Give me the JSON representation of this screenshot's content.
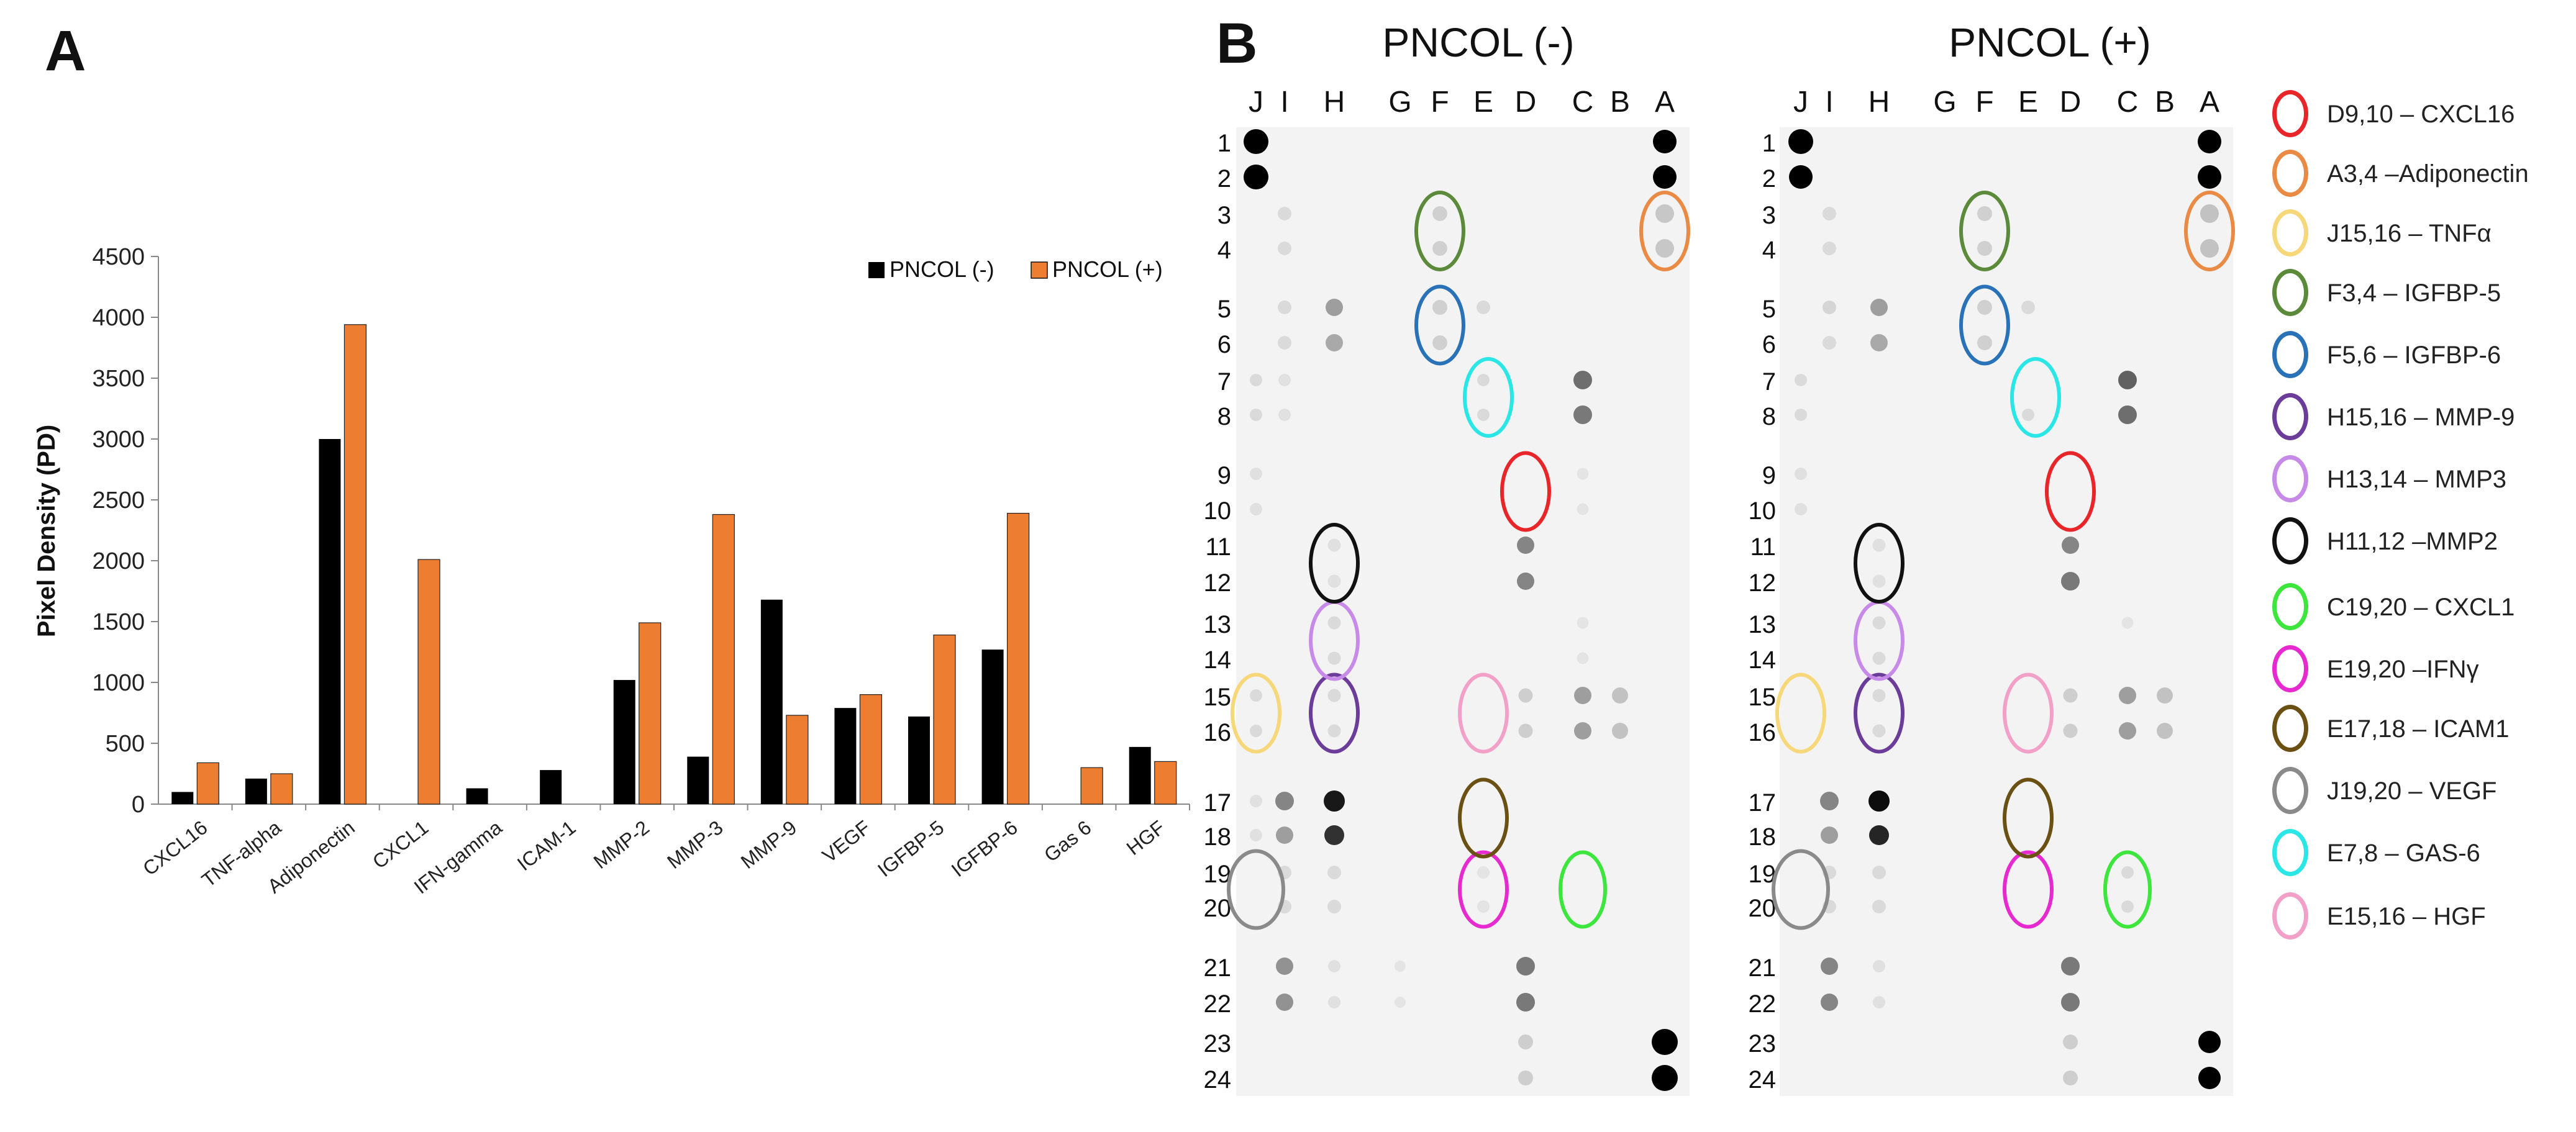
{
  "panel_a": {
    "letter": "A",
    "chart_data": {
      "type": "bar",
      "title": "",
      "xlabel": "",
      "ylabel": "Pixel Density (PD)",
      "ylim": [
        0,
        4500
      ],
      "yticks": [
        0,
        500,
        1000,
        1500,
        2000,
        2500,
        3000,
        3500,
        4000,
        4500
      ],
      "categories": [
        "CXCL16",
        "TNF-alpha",
        "Adiponectin",
        "CXCL1",
        "IFN-gamma",
        "ICAM-1",
        "MMP-2",
        "MMP-3",
        "MMP-9",
        "VEGF",
        "IGFBP-5",
        "IGFBP-6",
        "Gas 6",
        "HGF"
      ],
      "series": [
        {
          "name": "PNCOL (-)",
          "color": "#000000",
          "values": [
            100,
            210,
            3000,
            0,
            130,
            280,
            1020,
            390,
            1680,
            790,
            720,
            1270,
            0,
            470
          ]
        },
        {
          "name": "PNCOL (+)",
          "color": "#ed7d31",
          "values": [
            340,
            250,
            3940,
            2010,
            0,
            0,
            1490,
            2380,
            730,
            900,
            1390,
            2390,
            300,
            350
          ]
        }
      ],
      "legend_position": "top-right",
      "grid": false
    }
  },
  "panel_b": {
    "letter": "B",
    "column_letters": [
      "J",
      "I",
      "H",
      "G",
      "F",
      "E",
      "D",
      "C",
      "B",
      "A"
    ],
    "row_numbers": [
      "1",
      "2",
      "3",
      "4",
      "5",
      "6",
      "7",
      "8",
      "9",
      "10",
      "11",
      "12",
      "13",
      "14",
      "15",
      "16",
      "17",
      "18",
      "19",
      "20",
      "21",
      "22",
      "23",
      "24"
    ],
    "blots": [
      {
        "title": "PNCOL (-)"
      },
      {
        "title": "PNCOL (+)"
      }
    ],
    "legend": [
      {
        "label": "D9,10 – CXCL16",
        "color": "#e8262a"
      },
      {
        "label": "A3,4 –Adiponectin",
        "color": "#e98a45"
      },
      {
        "label": "J15,16 – TNFα",
        "color": "#f6d77a"
      },
      {
        "label": "F3,4 – IGFBP-5",
        "color": "#5a8a3a"
      },
      {
        "label": "F5,6 – IGFBP-6",
        "color": "#2a72b8"
      },
      {
        "label": "H15,16 – MMP-9",
        "color": "#6b3c9a"
      },
      {
        "label": "H13,14 – MMP3",
        "color": "#c88ae8"
      },
      {
        "label": "H11,12 –MMP2",
        "color": "#111111"
      },
      {
        "label": "C19,20 – CXCL1",
        "color": "#3de63d"
      },
      {
        "label": "E19,20 –IFNγ",
        "color": "#e62ad0"
      },
      {
        "label": "E17,18 – ICAM1",
        "color": "#6b5014"
      },
      {
        "label": "J19,20 – VEGF",
        "color": "#8a8a8a"
      },
      {
        "label": "E7,8 – GAS-6",
        "color": "#2ae6e6"
      },
      {
        "label": "E15,16 – HGF",
        "color": "#f2a0c8"
      }
    ]
  }
}
